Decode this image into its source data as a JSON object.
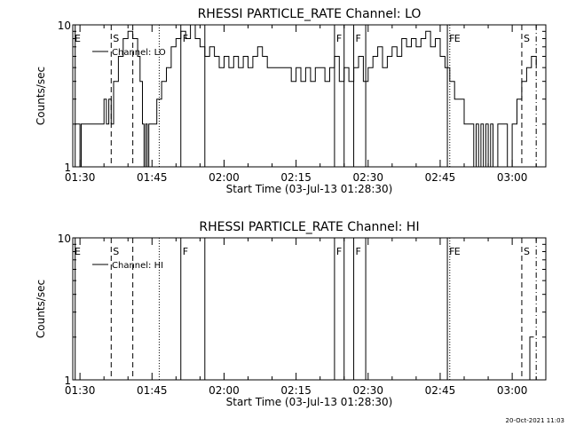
{
  "chart_data": [
    {
      "type": "line",
      "title": "RHESSI PARTICLE_RATE Channel: LO",
      "xlabel": "Start Time (03-Jul-13 01:28:30)",
      "ylabel": "Counts/sec",
      "yscale": "log",
      "ylim": [
        1,
        10
      ],
      "yticks": [
        {
          "v": 1,
          "label": "1"
        },
        {
          "v": 10,
          "label": "10"
        }
      ],
      "xlim": [
        "01:28:30",
        "03:07:00"
      ],
      "xticks": [
        "01:30",
        "01:45",
        "02:00",
        "02:15",
        "02:30",
        "02:45",
        "03:00"
      ],
      "legend_position": "top-left",
      "grid": false,
      "series": [
        {
          "name": "Channel: LO",
          "step": true,
          "points": [
            [
              "01:29:00",
              2
            ],
            [
              "01:30:00",
              1
            ],
            [
              "01:30:15",
              2
            ],
            [
              "01:35:00",
              3
            ],
            [
              "01:35:30",
              2
            ],
            [
              "01:36:00",
              3
            ],
            [
              "01:36:30",
              2
            ],
            [
              "01:37:00",
              4
            ],
            [
              "01:38:00",
              6
            ],
            [
              "01:39:00",
              8
            ],
            [
              "01:40:00",
              9
            ],
            [
              "01:41:00",
              8
            ],
            [
              "01:42:00",
              6
            ],
            [
              "01:42:30",
              4
            ],
            [
              "01:43:00",
              2
            ],
            [
              "01:43:20",
              1
            ],
            [
              "01:43:40",
              2
            ],
            [
              "01:44:00",
              1
            ],
            [
              "01:44:20",
              2
            ],
            [
              "01:45:00",
              2
            ],
            [
              "01:46:00",
              3
            ],
            [
              "01:47:00",
              4
            ],
            [
              "01:48:00",
              5
            ],
            [
              "01:49:00",
              7
            ],
            [
              "01:50:00",
              8
            ],
            [
              "01:51:00",
              9
            ],
            [
              "01:52:00",
              8
            ],
            [
              "01:53:00",
              10
            ],
            [
              "01:54:00",
              8
            ],
            [
              "01:55:00",
              7
            ],
            [
              "01:56:00",
              6
            ],
            [
              "01:57:00",
              7
            ],
            [
              "01:58:00",
              6
            ],
            [
              "01:59:00",
              5
            ],
            [
              "02:00:00",
              6
            ],
            [
              "02:01:00",
              5
            ],
            [
              "02:02:00",
              6
            ],
            [
              "02:03:00",
              5
            ],
            [
              "02:04:00",
              6
            ],
            [
              "02:05:00",
              5
            ],
            [
              "02:06:00",
              6
            ],
            [
              "02:07:00",
              7
            ],
            [
              "02:08:00",
              6
            ],
            [
              "02:09:00",
              5
            ],
            [
              "02:10:00",
              5
            ],
            [
              "02:12:00",
              5
            ],
            [
              "02:13:00",
              5
            ],
            [
              "02:14:00",
              4
            ],
            [
              "02:15:00",
              5
            ],
            [
              "02:16:00",
              4
            ],
            [
              "02:17:00",
              5
            ],
            [
              "02:18:00",
              4
            ],
            [
              "02:19:00",
              5
            ],
            [
              "02:20:00",
              5
            ],
            [
              "02:21:00",
              4
            ],
            [
              "02:22:00",
              5
            ],
            [
              "02:23:00",
              6
            ],
            [
              "02:24:00",
              4
            ],
            [
              "02:25:00",
              5
            ],
            [
              "02:26:00",
              4
            ],
            [
              "02:27:00",
              5
            ],
            [
              "02:28:00",
              6
            ],
            [
              "02:29:00",
              4
            ],
            [
              "02:30:00",
              5
            ],
            [
              "02:31:00",
              6
            ],
            [
              "02:32:00",
              7
            ],
            [
              "02:33:00",
              5
            ],
            [
              "02:34:00",
              6
            ],
            [
              "02:35:00",
              7
            ],
            [
              "02:36:00",
              6
            ],
            [
              "02:37:00",
              8
            ],
            [
              "02:38:00",
              7
            ],
            [
              "02:39:00",
              8
            ],
            [
              "02:40:00",
              7
            ],
            [
              "02:41:00",
              8
            ],
            [
              "02:42:00",
              9
            ],
            [
              "02:43:00",
              7
            ],
            [
              "02:44:00",
              8
            ],
            [
              "02:45:00",
              6
            ],
            [
              "02:46:00",
              5
            ],
            [
              "02:47:00",
              4
            ],
            [
              "02:48:00",
              3
            ],
            [
              "02:49:00",
              3
            ],
            [
              "02:50:00",
              2
            ],
            [
              "02:51:00",
              2
            ],
            [
              "02:52:00",
              1
            ],
            [
              "02:52:30",
              2
            ],
            [
              "02:53:00",
              1
            ],
            [
              "02:53:30",
              2
            ],
            [
              "02:54:00",
              1
            ],
            [
              "02:54:30",
              2
            ],
            [
              "02:55:00",
              1
            ],
            [
              "02:55:30",
              2
            ],
            [
              "02:56:00",
              1
            ],
            [
              "02:57:00",
              2
            ],
            [
              "02:58:00",
              2
            ],
            [
              "02:59:00",
              1
            ],
            [
              "03:00:00",
              2
            ],
            [
              "03:01:00",
              3
            ],
            [
              "03:02:00",
              4
            ],
            [
              "03:03:00",
              5
            ],
            [
              "03:04:00",
              6
            ],
            [
              "03:05:00",
              5
            ]
          ]
        }
      ],
      "markers": [
        {
          "type": "E",
          "time": "01:29:00",
          "style": "solid",
          "print": false
        },
        {
          "type": "S",
          "time": "01:36:30",
          "style": "dashed",
          "print": true
        },
        {
          "type": "",
          "time": "01:41:00",
          "style": "dashed",
          "print": false
        },
        {
          "type": "",
          "time": "01:46:30",
          "style": "dotted",
          "print": false
        },
        {
          "type": "F",
          "time": "01:51:00",
          "style": "solid",
          "print": true
        },
        {
          "type": "",
          "time": "01:56:00",
          "style": "solid",
          "print": false
        },
        {
          "type": "F",
          "time": "02:23:00",
          "style": "solid",
          "print": true
        },
        {
          "type": "",
          "time": "02:25:00",
          "style": "solid",
          "print": false
        },
        {
          "type": "F",
          "time": "02:27:00",
          "style": "solid",
          "print": true
        },
        {
          "type": "",
          "time": "02:29:30",
          "style": "solid",
          "print": false
        },
        {
          "type": "F",
          "time": "02:46:30",
          "style": "solid",
          "print": true
        },
        {
          "type": "E",
          "time": "02:47:00",
          "style": "dotted",
          "print": true
        },
        {
          "type": "S",
          "time": "03:02:00",
          "style": "dashed",
          "print": true
        },
        {
          "type": "",
          "time": "03:05:00",
          "style": "dashdot",
          "print": false
        }
      ],
      "marker_label_E": "E"
    },
    {
      "type": "line",
      "title": "RHESSI PARTICLE_RATE Channel: HI",
      "xlabel": "Start Time (03-Jul-13 01:28:30)",
      "ylabel": "Counts/sec",
      "yscale": "log",
      "ylim": [
        1,
        10
      ],
      "yticks": [
        {
          "v": 1,
          "label": "1"
        },
        {
          "v": 10,
          "label": "10"
        }
      ],
      "xlim": [
        "01:28:30",
        "03:07:00"
      ],
      "xticks": [
        "01:30",
        "01:45",
        "02:00",
        "02:15",
        "02:30",
        "02:45",
        "03:00"
      ],
      "legend_position": "top-left",
      "grid": false,
      "series": [
        {
          "name": "Channel: HI",
          "step": true,
          "points": [
            [
              "03:03:00",
              1
            ],
            [
              "03:03:40",
              2
            ],
            [
              "03:04:30",
              2
            ]
          ]
        }
      ],
      "markers": [
        {
          "type": "E",
          "time": "01:29:00",
          "style": "solid",
          "print": false
        },
        {
          "type": "S",
          "time": "01:36:30",
          "style": "dashed",
          "print": true
        },
        {
          "type": "",
          "time": "01:41:00",
          "style": "dashed",
          "print": false
        },
        {
          "type": "",
          "time": "01:46:30",
          "style": "dotted",
          "print": false
        },
        {
          "type": "F",
          "time": "01:51:00",
          "style": "solid",
          "print": true
        },
        {
          "type": "",
          "time": "01:56:00",
          "style": "solid",
          "print": false
        },
        {
          "type": "F",
          "time": "02:23:00",
          "style": "solid",
          "print": true
        },
        {
          "type": "",
          "time": "02:25:00",
          "style": "solid",
          "print": false
        },
        {
          "type": "F",
          "time": "02:27:00",
          "style": "solid",
          "print": true
        },
        {
          "type": "",
          "time": "02:29:30",
          "style": "solid",
          "print": false
        },
        {
          "type": "F",
          "time": "02:46:30",
          "style": "solid",
          "print": true
        },
        {
          "type": "E",
          "time": "02:47:00",
          "style": "dotted",
          "print": true
        },
        {
          "type": "S",
          "time": "03:02:00",
          "style": "dashed",
          "print": true
        },
        {
          "type": "",
          "time": "03:05:00",
          "style": "dashdot",
          "print": false
        }
      ],
      "marker_label_E": "E"
    }
  ],
  "footer": {
    "stamp": "20-Oct-2021 11:03"
  }
}
